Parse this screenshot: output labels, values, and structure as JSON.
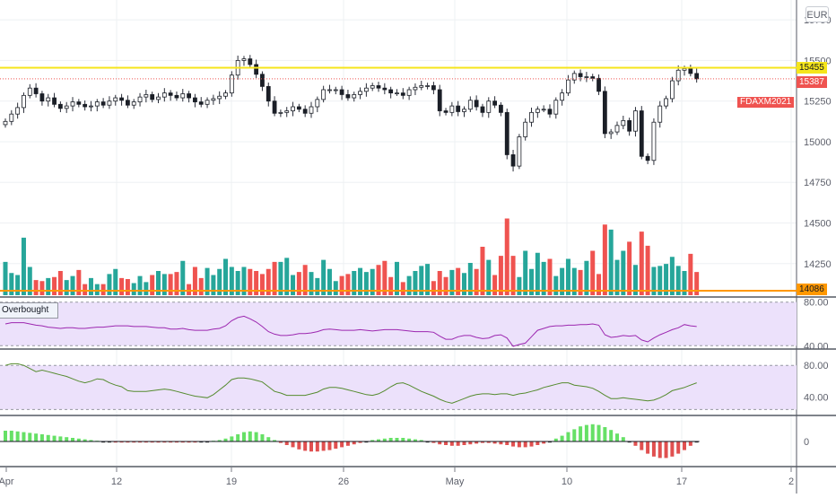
{
  "currency_button": "EUR",
  "price_axis": {
    "ticks": [
      "15750",
      "15500",
      "15250",
      "15000",
      "14750",
      "14500",
      "14250"
    ]
  },
  "rsi_axis": {
    "ticks": [
      "80.00",
      "40.00"
    ]
  },
  "stoch_axis": {
    "ticks": [
      "80.00",
      "40.00"
    ]
  },
  "osc_axis": {
    "ticks": [
      "0"
    ]
  },
  "time_axis": {
    "labels": [
      "Apr",
      "12",
      "19",
      "26",
      "May",
      "10",
      "17",
      "2"
    ]
  },
  "price_labels": {
    "resistance": "15455",
    "last": "15387",
    "symbol": "FDAXM2021",
    "support": "14086"
  },
  "indicator_legend": "Overbought",
  "colors": {
    "up": "#26a69a",
    "down": "#ef5350",
    "resistance": "#f5e51b",
    "support": "#ff9800",
    "rsi": "#9c27b0",
    "stoch": "#558b2f",
    "osc_up": "#66e066",
    "osc_down": "#e05050",
    "band": "#ece1fb",
    "symbol_bg": "#ef5350"
  },
  "chart_data": {
    "type": "candlestick",
    "resistance": 15455,
    "support": 14086,
    "last_price": 15387,
    "price_ylim": [
      14050,
      15850
    ],
    "price_series": [
      15125,
      15170,
      15210,
      15285,
      15330,
      15295,
      15250,
      15270,
      15230,
      15205,
      15220,
      15245,
      15230,
      15215,
      15220,
      15245,
      15225,
      15250,
      15270,
      15255,
      15225,
      15245,
      15275,
      15290,
      15260,
      15275,
      15300,
      15285,
      15270,
      15295,
      15270,
      15245,
      15230,
      15255,
      15265,
      15280,
      15300,
      15410,
      15500,
      15510,
      15475,
      15415,
      15340,
      15250,
      15175,
      15180,
      15190,
      15215,
      15200,
      15175,
      15215,
      15260,
      15320,
      15320,
      15320,
      15290,
      15270,
      15290,
      15310,
      15330,
      15345,
      15330,
      15320,
      15300,
      15300,
      15285,
      15320,
      15335,
      15345,
      15345,
      15320,
      15190,
      15180,
      15220,
      15185,
      15200,
      15255,
      15215,
      15180,
      15250,
      15225,
      15180,
      14920,
      14850,
      15030,
      15120,
      15180,
      15200,
      15200,
      15170,
      15255,
      15300,
      15380,
      15420,
      15400,
      15400,
      15390,
      15310,
      15050,
      15060,
      15100,
      15130,
      15065,
      15190,
      14910,
      14885,
      15120,
      15220,
      15265,
      15375,
      15440,
      15450,
      15420,
      15387
    ],
    "volume_series": [
      33,
      22,
      20,
      57,
      28,
      15,
      14,
      17,
      18,
      24,
      15,
      19,
      25,
      11,
      17,
      11,
      11,
      21,
      26,
      17,
      16,
      12,
      19,
      13,
      20,
      24,
      21,
      21,
      23,
      34,
      11,
      28,
      17,
      27,
      20,
      26,
      36,
      28,
      24,
      28,
      26,
      24,
      21,
      26,
      33,
      33,
      37,
      20,
      23,
      30,
      23,
      17,
      35,
      26,
      14,
      19,
      21,
      24,
      27,
      23,
      26,
      30,
      34,
      18,
      33,
      13,
      19,
      24,
      29,
      31,
      14,
      24,
      18,
      25,
      27,
      22,
      32,
      26,
      48,
      35,
      20,
      39,
      76,
      39,
      18,
      44,
      26,
      42,
      33,
      36,
      19,
      27,
      36,
      27,
      25,
      34,
      44,
      21,
      70,
      65,
      35,
      44,
      53,
      30,
      63,
      49,
      28,
      29,
      31,
      38,
      29,
      24,
      41,
      23
    ],
    "rsi_ylim": [
      25,
      95
    ],
    "rsi_series": [
      60,
      62,
      62,
      62,
      60,
      58,
      57,
      55,
      54,
      53,
      54,
      54,
      53,
      53,
      54,
      55,
      55,
      56,
      57,
      57,
      57,
      56,
      56,
      56,
      55,
      54,
      54,
      52,
      52,
      53,
      51,
      50,
      50,
      50,
      52,
      53,
      57,
      65,
      70,
      72,
      68,
      63,
      56,
      48,
      44,
      42,
      42,
      43,
      45,
      45,
      46,
      48,
      51,
      52,
      51,
      50,
      50,
      50,
      51,
      50,
      49,
      50,
      51,
      51,
      51,
      50,
      49,
      48,
      48,
      48,
      47,
      41,
      36,
      36,
      40,
      42,
      42,
      39,
      37,
      38,
      42,
      43,
      38,
      25,
      28,
      30,
      40,
      50,
      53,
      56,
      57,
      57,
      58,
      58,
      59,
      59,
      60,
      58,
      43,
      39,
      40,
      42,
      41,
      42,
      35,
      32,
      38,
      43,
      47,
      51,
      54,
      59,
      57,
      56
    ],
    "stoch_ylim": [
      20,
      95
    ],
    "stoch_series": [
      80,
      82,
      82,
      80,
      76,
      72,
      74,
      72,
      70,
      68,
      66,
      63,
      60,
      58,
      60,
      63,
      62,
      58,
      55,
      53,
      48,
      47,
      47,
      47,
      48,
      49,
      50,
      49,
      47,
      45,
      43,
      41,
      40,
      39,
      43,
      49,
      55,
      62,
      64,
      64,
      63,
      61,
      59,
      53,
      47,
      45,
      42,
      42,
      42,
      42,
      44,
      46,
      50,
      52,
      52,
      51,
      49,
      47,
      45,
      43,
      42,
      44,
      48,
      53,
      57,
      58,
      55,
      51,
      47,
      44,
      41,
      37,
      34,
      32,
      35,
      38,
      41,
      43,
      44,
      44,
      43,
      44,
      44,
      42,
      44,
      45,
      47,
      49,
      52,
      54,
      56,
      58,
      58,
      55,
      54,
      53,
      51,
      47,
      42,
      38,
      38,
      39,
      38,
      37,
      36,
      35,
      36,
      39,
      43,
      48,
      50,
      52,
      55,
      58
    ],
    "osc_ylim": [
      -30,
      30
    ],
    "osc_series": [
      15,
      15,
      14,
      13,
      12,
      11,
      10,
      9,
      8,
      7,
      6,
      5,
      4,
      3,
      2,
      1,
      0,
      0,
      -1,
      -1,
      -1,
      -1,
      -1,
      -1,
      -1,
      -1,
      -1,
      -1,
      -1,
      -1,
      -1,
      -1,
      0,
      0,
      1,
      2,
      4,
      7,
      10,
      13,
      14,
      13,
      10,
      6,
      2,
      -2,
      -5,
      -8,
      -11,
      -13,
      -14,
      -14,
      -13,
      -12,
      -10,
      -8,
      -6,
      -4,
      -2,
      0,
      2,
      3,
      4,
      5,
      5,
      5,
      4,
      3,
      2,
      0,
      -2,
      -4,
      -5,
      -6,
      -6,
      -5,
      -4,
      -3,
      -2,
      -2,
      -3,
      -4,
      -5,
      -7,
      -8,
      -8,
      -7,
      -5,
      -3,
      0,
      4,
      8,
      13,
      17,
      21,
      23,
      24,
      23,
      20,
      16,
      11,
      6,
      0,
      -6,
      -12,
      -17,
      -21,
      -23,
      -23,
      -21,
      -17,
      -12,
      -6,
      0
    ],
    "x_labels": [
      "Apr",
      "12",
      "19",
      "26",
      "May",
      "10",
      "17",
      "2"
    ]
  }
}
